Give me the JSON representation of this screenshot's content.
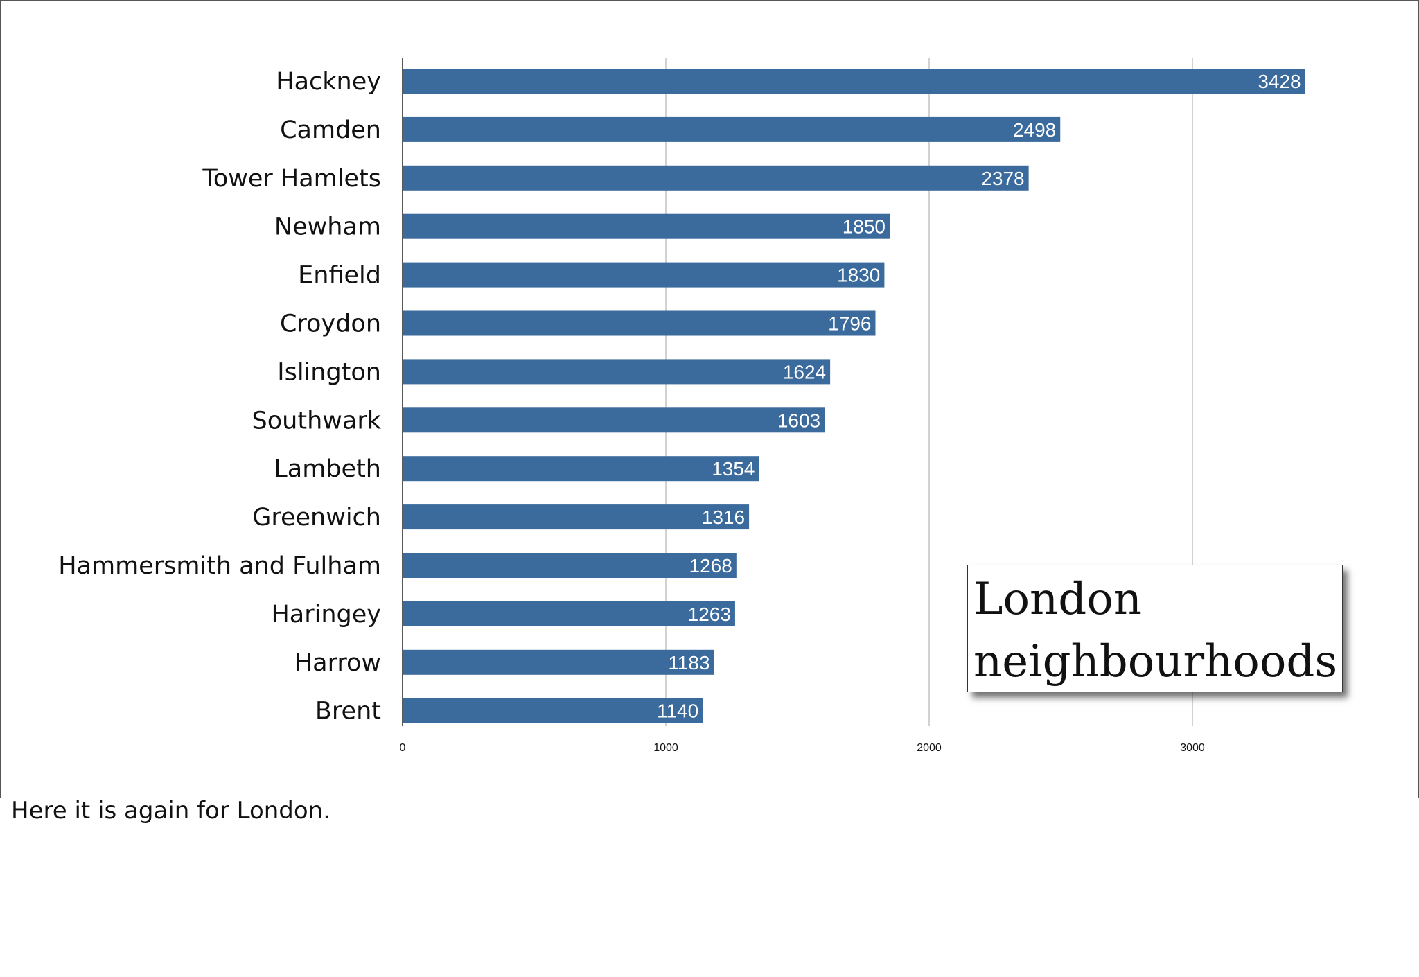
{
  "chart_data": {
    "type": "bar",
    "orientation": "horizontal",
    "title": "London neighbourhoods",
    "categories": [
      "Hackney",
      "Camden",
      "Tower Hamlets",
      "Newham",
      "Enfield",
      "Croydon",
      "Islington",
      "Southwark",
      "Lambeth",
      "Greenwich",
      "Hammersmith and Fulham",
      "Haringey",
      "Harrow",
      "Brent"
    ],
    "values": [
      3428,
      2498,
      2378,
      1850,
      1830,
      1796,
      1624,
      1603,
      1354,
      1316,
      1268,
      1263,
      1183,
      1140
    ],
    "xlabel": "",
    "ylabel": "",
    "xlim": [
      0,
      3500
    ],
    "xticks": [
      0,
      1000,
      2000,
      3000
    ],
    "grid": true,
    "data_labels": true,
    "bar_color": "#3b6a9c"
  },
  "caption": "Here it is again for London."
}
